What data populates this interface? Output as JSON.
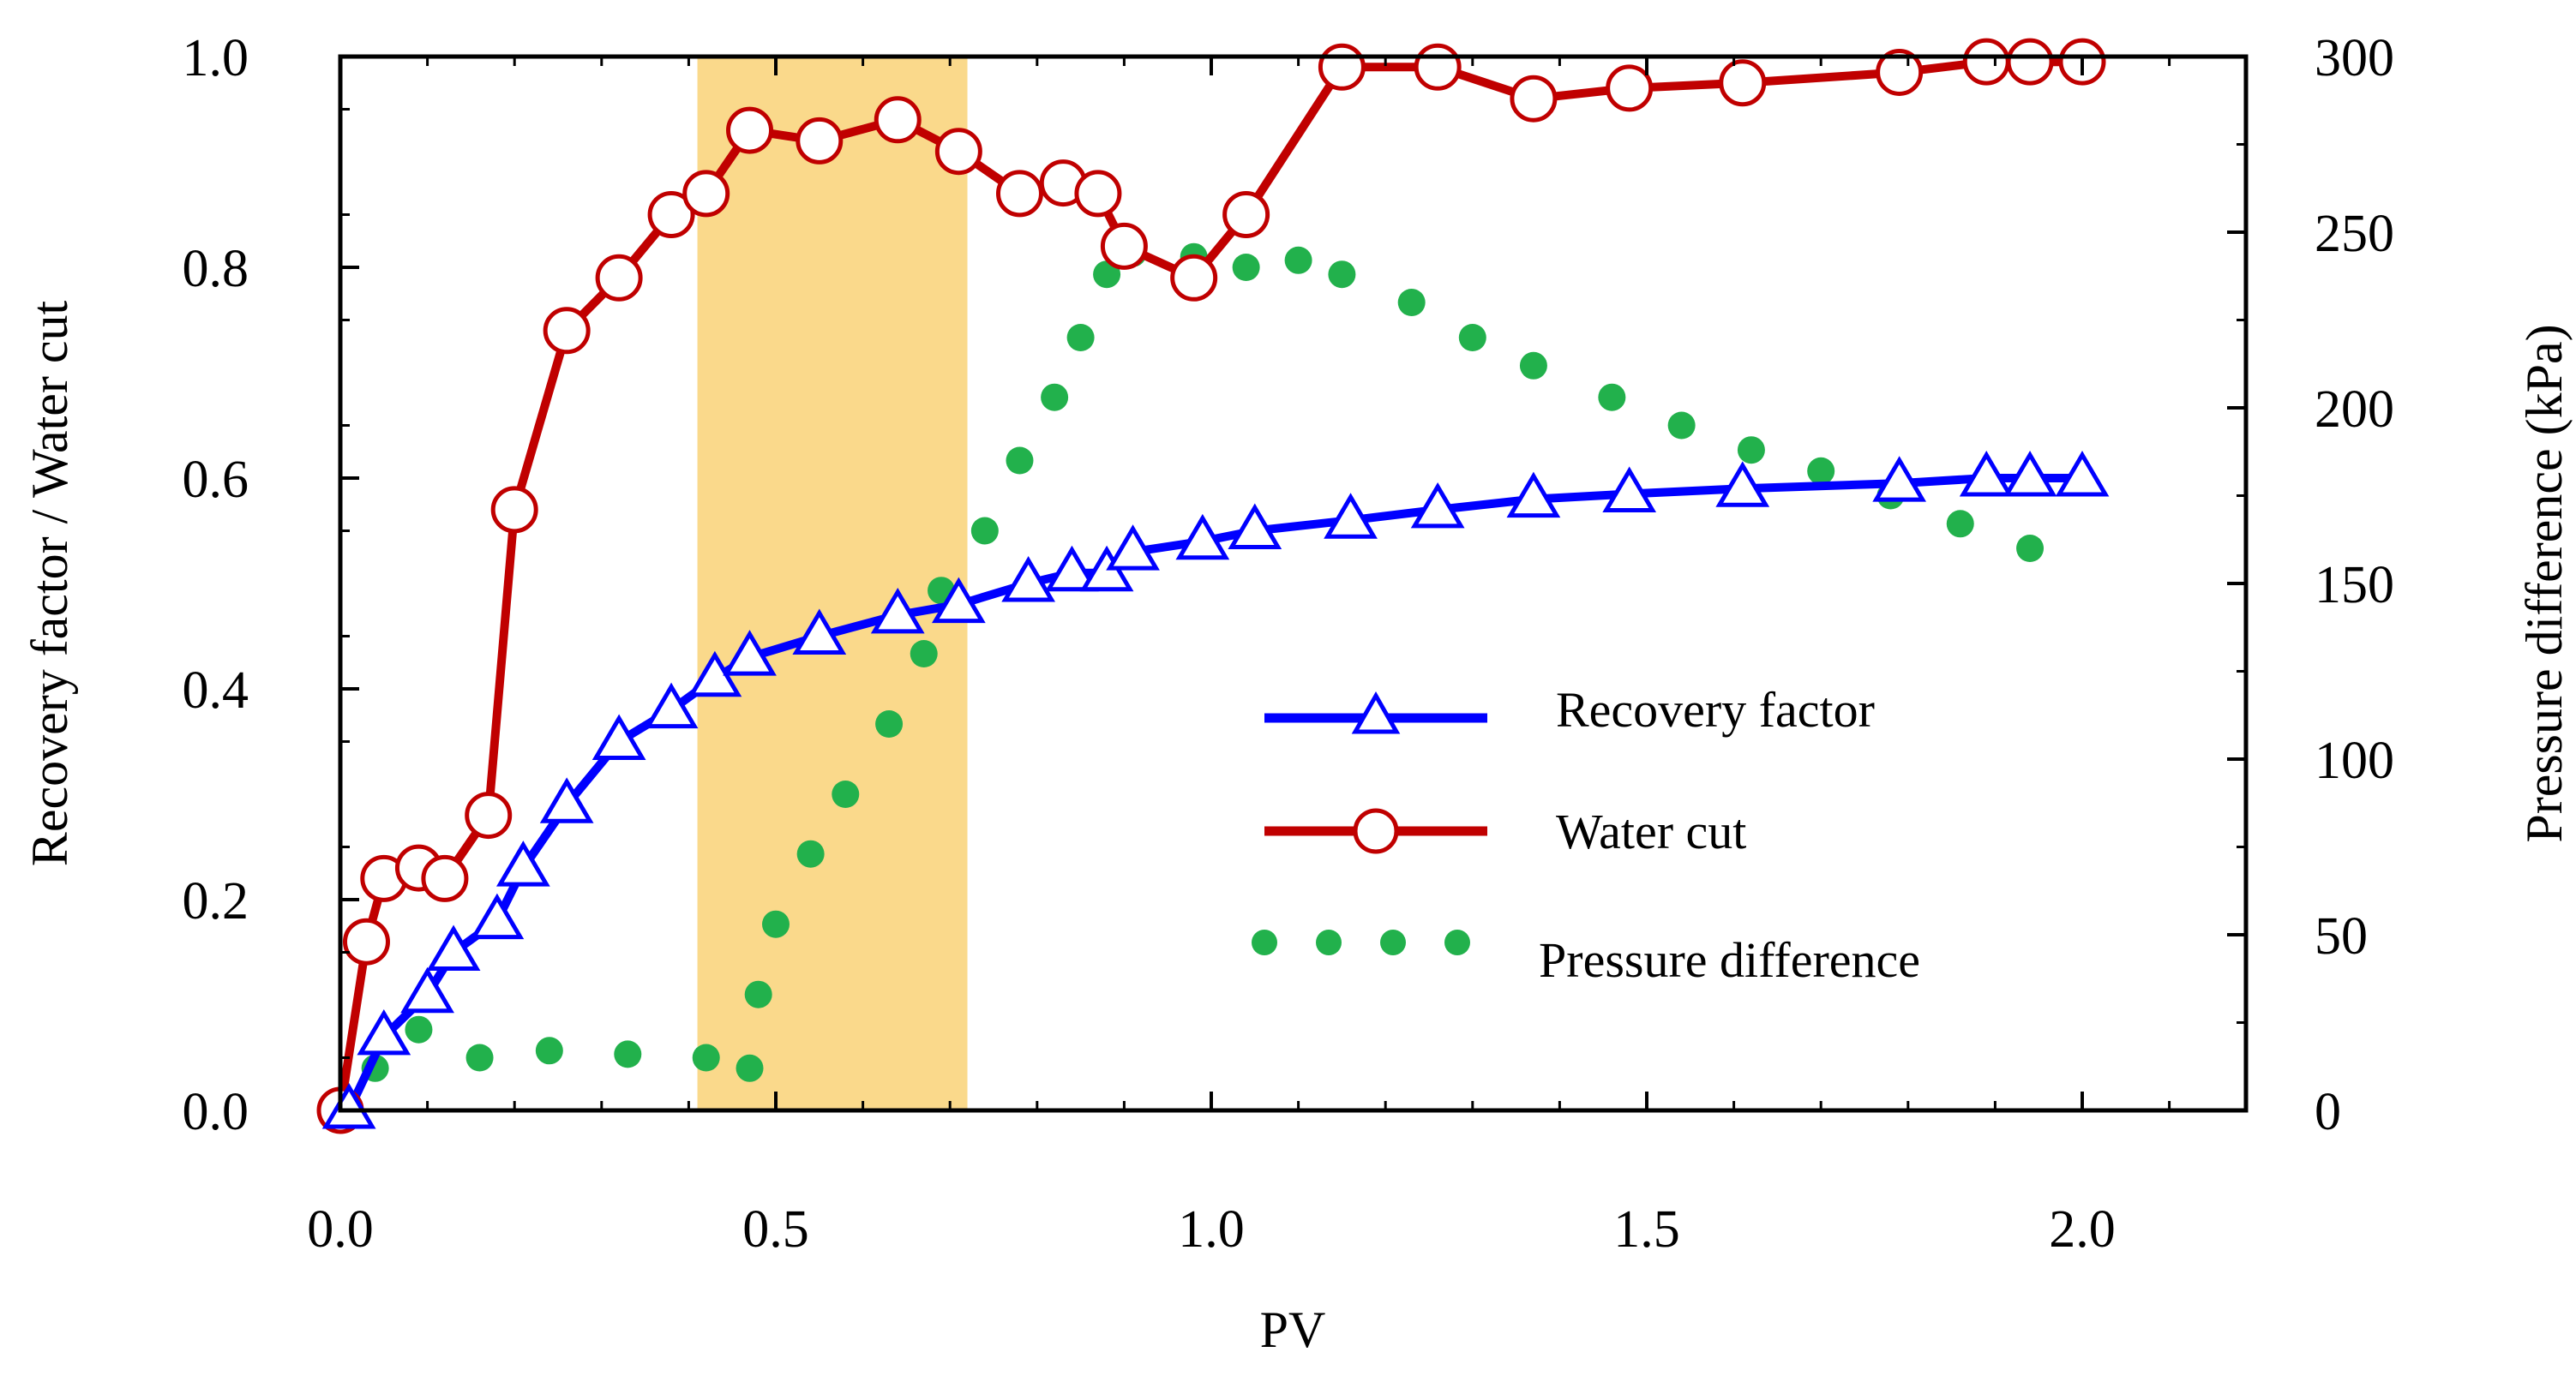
{
  "chart_data": {
    "type": "line",
    "x": {
      "label": "PV",
      "range": [
        0,
        2.2
      ],
      "ticks": [
        "0.0",
        "0.5",
        "1.0",
        "1.5",
        "2.0"
      ],
      "tick_values": [
        0,
        0.5,
        1.0,
        1.5,
        2.0
      ]
    },
    "y_left": {
      "label": "Recovery factor / Water cut",
      "range": [
        0,
        1.0
      ],
      "ticks": [
        "0.0",
        "0.2",
        "0.4",
        "0.6",
        "0.8",
        "1.0"
      ],
      "tick_values": [
        0,
        0.2,
        0.4,
        0.6,
        0.8,
        1.0
      ]
    },
    "y_right": {
      "label": "Pressure difference (kPa)",
      "range": [
        0,
        300
      ],
      "ticks": [
        "0",
        "50",
        "100",
        "150",
        "200",
        "250",
        "300"
      ],
      "tick_values": [
        0,
        50,
        100,
        150,
        200,
        250,
        300
      ]
    },
    "highlight_band": {
      "x_range": [
        0.41,
        0.72
      ],
      "color": "#fad98b"
    },
    "series": [
      {
        "name": "Recovery factor",
        "axis": "left",
        "color": "#0000ff",
        "marker": "triangle",
        "points": [
          [
            0.01,
            0.0
          ],
          [
            0.05,
            0.07
          ],
          [
            0.1,
            0.11
          ],
          [
            0.13,
            0.15
          ],
          [
            0.18,
            0.18
          ],
          [
            0.21,
            0.23
          ],
          [
            0.26,
            0.29
          ],
          [
            0.32,
            0.35
          ],
          [
            0.38,
            0.38
          ],
          [
            0.43,
            0.41
          ],
          [
            0.47,
            0.43
          ],
          [
            0.55,
            0.45
          ],
          [
            0.64,
            0.47
          ],
          [
            0.71,
            0.48
          ],
          [
            0.79,
            0.5
          ],
          [
            0.84,
            0.51
          ],
          [
            0.88,
            0.51
          ],
          [
            0.91,
            0.53
          ],
          [
            0.99,
            0.54
          ],
          [
            1.05,
            0.55
          ],
          [
            1.16,
            0.56
          ],
          [
            1.26,
            0.57
          ],
          [
            1.37,
            0.58
          ],
          [
            1.48,
            0.585
          ],
          [
            1.61,
            0.59
          ],
          [
            1.79,
            0.595
          ],
          [
            1.89,
            0.6
          ],
          [
            1.94,
            0.6
          ],
          [
            2.0,
            0.6
          ]
        ]
      },
      {
        "name": "Water cut",
        "axis": "left",
        "color": "#c00000",
        "marker": "circle",
        "points": [
          [
            0.0,
            0.0
          ],
          [
            0.03,
            0.16
          ],
          [
            0.05,
            0.22
          ],
          [
            0.09,
            0.23
          ],
          [
            0.12,
            0.22
          ],
          [
            0.17,
            0.28
          ],
          [
            0.2,
            0.57
          ],
          [
            0.26,
            0.74
          ],
          [
            0.32,
            0.79
          ],
          [
            0.38,
            0.85
          ],
          [
            0.42,
            0.87
          ],
          [
            0.47,
            0.93
          ],
          [
            0.55,
            0.92
          ],
          [
            0.64,
            0.94
          ],
          [
            0.71,
            0.91
          ],
          [
            0.78,
            0.87
          ],
          [
            0.83,
            0.88
          ],
          [
            0.87,
            0.87
          ],
          [
            0.9,
            0.82
          ],
          [
            0.98,
            0.79
          ],
          [
            1.04,
            0.85
          ],
          [
            1.15,
            0.99
          ],
          [
            1.26,
            0.99
          ],
          [
            1.37,
            0.96
          ],
          [
            1.48,
            0.97
          ],
          [
            1.61,
            0.975
          ],
          [
            1.79,
            0.985
          ],
          [
            1.89,
            0.995
          ],
          [
            1.94,
            0.995
          ],
          [
            2.0,
            0.995
          ]
        ]
      },
      {
        "name": "Pressure difference",
        "axis": "right",
        "color": "#22b14c",
        "marker": "dot",
        "points": [
          [
            0.0,
            1
          ],
          [
            0.04,
            12
          ],
          [
            0.09,
            23
          ],
          [
            0.16,
            15
          ],
          [
            0.24,
            17
          ],
          [
            0.33,
            16
          ],
          [
            0.42,
            15
          ],
          [
            0.47,
            12
          ],
          [
            0.48,
            33
          ],
          [
            0.5,
            53
          ],
          [
            0.54,
            73
          ],
          [
            0.58,
            90
          ],
          [
            0.63,
            110
          ],
          [
            0.67,
            130
          ],
          [
            0.69,
            148
          ],
          [
            0.74,
            165
          ],
          [
            0.78,
            185
          ],
          [
            0.82,
            203
          ],
          [
            0.85,
            220
          ],
          [
            0.88,
            238
          ],
          [
            0.91,
            244
          ],
          [
            0.98,
            243
          ],
          [
            1.04,
            240
          ],
          [
            1.1,
            242
          ],
          [
            1.15,
            238
          ],
          [
            1.23,
            230
          ],
          [
            1.3,
            220
          ],
          [
            1.37,
            212
          ],
          [
            1.46,
            203
          ],
          [
            1.54,
            195
          ],
          [
            1.62,
            188
          ],
          [
            1.7,
            182
          ],
          [
            1.78,
            175
          ],
          [
            1.86,
            167
          ],
          [
            1.94,
            160
          ]
        ]
      }
    ],
    "legend": {
      "placement": "center-right",
      "entries": [
        "Recovery factor",
        "Water cut",
        "Pressure difference"
      ]
    }
  }
}
